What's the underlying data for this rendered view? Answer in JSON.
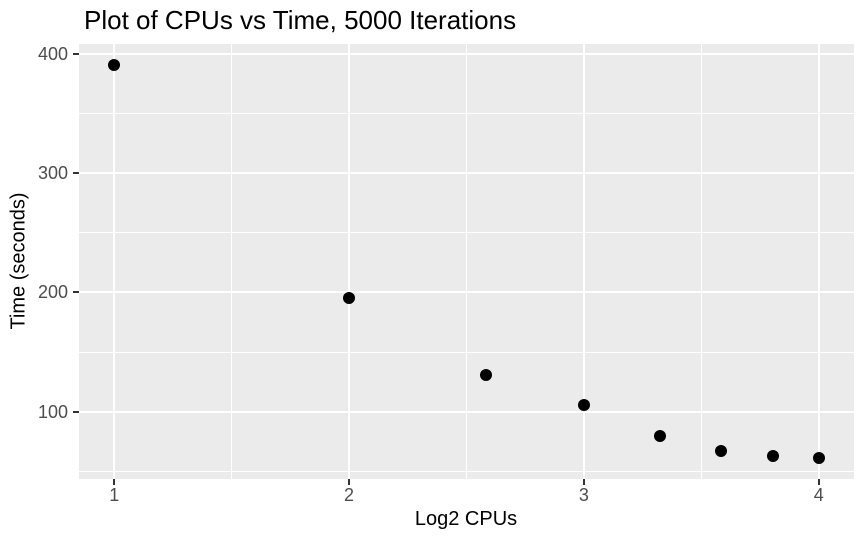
{
  "chart_data": {
    "type": "scatter",
    "title": "Plot of CPUs vs Time, 5000 Iterations",
    "xlabel": "Log2 CPUs",
    "ylabel": "Time (seconds)",
    "points": [
      {
        "x": 1.0,
        "y": 391
      },
      {
        "x": 2.0,
        "y": 195
      },
      {
        "x": 2.585,
        "y": 131
      },
      {
        "x": 3.0,
        "y": 106
      },
      {
        "x": 3.322,
        "y": 80
      },
      {
        "x": 3.585,
        "y": 67
      },
      {
        "x": 3.807,
        "y": 63
      },
      {
        "x": 4.0,
        "y": 61
      }
    ],
    "xlim": [
      0.85,
      4.15
    ],
    "ylim": [
      43.5,
      408.5
    ],
    "x_major_ticks": [
      1,
      2,
      3,
      4
    ],
    "x_tick_labels": [
      "1",
      "2",
      "3",
      "4"
    ],
    "y_major_ticks": [
      100,
      200,
      300,
      400
    ],
    "y_tick_labels": [
      "100",
      "200",
      "300",
      "400"
    ],
    "x_minor_gridlines": [
      1.5,
      2.5,
      3.5
    ],
    "y_minor_gridlines": [
      50,
      150,
      250,
      350
    ],
    "grid": true,
    "legend": "none",
    "colors": {
      "point": "#000000",
      "panel_bg": "#EBEBEB",
      "gridline": "#FFFFFF",
      "tick_text": "#4D4D4D",
      "tick_mark": "#333333",
      "title_text": "#000000"
    }
  }
}
